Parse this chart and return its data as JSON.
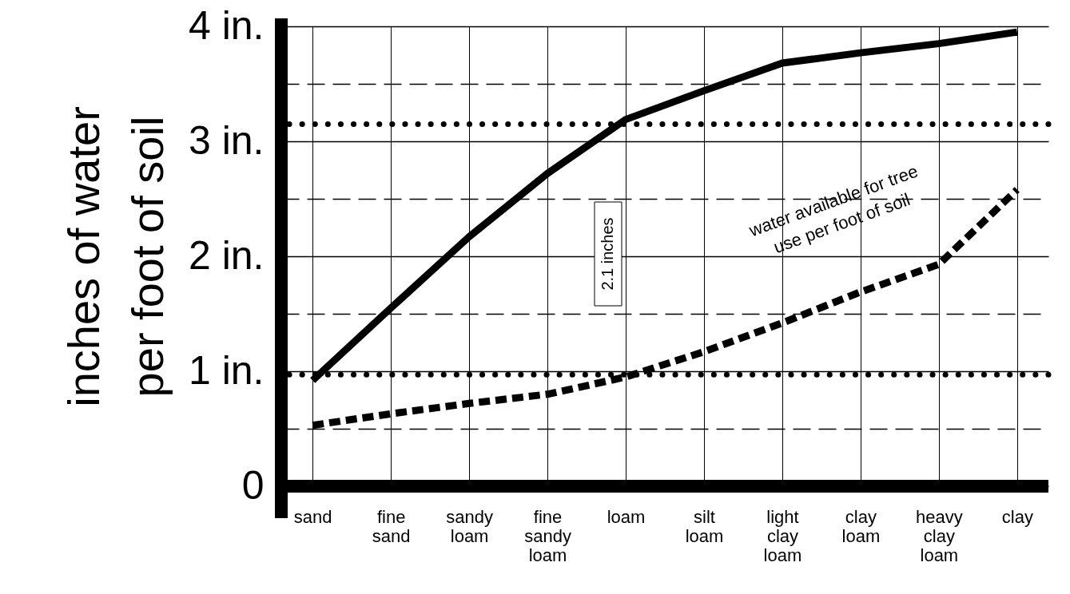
{
  "chart_data": {
    "type": "line",
    "ylabel": "inches of water\nper foot of soil",
    "categories": [
      "sand",
      "fine sand",
      "sandy loam",
      "fine sandy loam",
      "loam",
      "silt loam",
      "light clay loam",
      "clay loam",
      "heavy clay loam",
      "clay"
    ],
    "series": [
      {
        "color": "#000000",
        "line_style": "solid",
        "values": [
          0.92,
          1.55,
          2.17,
          2.72,
          3.19,
          3.44,
          3.68,
          3.77,
          3.85,
          3.95
        ]
      },
      {
        "color": "#000000",
        "line_style": "dashed",
        "values": [
          0.53,
          0.63,
          0.72,
          0.8,
          0.95,
          1.17,
          1.42,
          1.69,
          1.93,
          2.58
        ]
      }
    ],
    "ylim": [
      0,
      4
    ],
    "yticks": [
      {
        "value": 0,
        "label": "0"
      },
      {
        "value": 0.5,
        "label": null
      },
      {
        "value": 1,
        "label": "1 in."
      },
      {
        "value": 1.5,
        "label": null
      },
      {
        "value": 2,
        "label": "2 in."
      },
      {
        "value": 2.5,
        "label": null
      },
      {
        "value": 3,
        "label": "3 in."
      },
      {
        "value": 3.5,
        "label": null
      },
      {
        "value": 4,
        "label": "4 in."
      }
    ],
    "grid": true,
    "marker": "none",
    "ref_lines": [
      {
        "axis": "y",
        "value": 3.15,
        "line_style": "dotted"
      },
      {
        "axis": "y",
        "value": 0.97,
        "line_style": "dotted"
      }
    ],
    "annotations": [
      "2.1 inches",
      "water available for tree\nuse per foot of soil"
    ]
  }
}
